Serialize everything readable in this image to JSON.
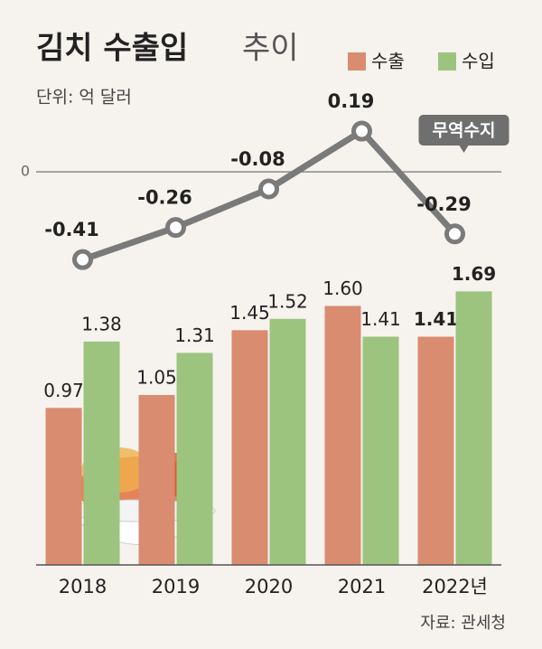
{
  "chart_data": {
    "type": "bar_line",
    "title": "김치 수출입",
    "title_light": "추이",
    "unit": "단위: 억 달러",
    "source": "자료: 관세청",
    "categories": [
      "2018",
      "2019",
      "2020",
      "2021",
      "2022년"
    ],
    "series": [
      {
        "name": "수출",
        "color": "#d98c70",
        "values": [
          0.97,
          1.05,
          1.45,
          1.6,
          1.41
        ],
        "value_labels": [
          "0.97",
          "1.05",
          "1.45",
          "1.60",
          "1.41"
        ]
      },
      {
        "name": "수입",
        "color": "#9cc47e",
        "values": [
          1.38,
          1.31,
          1.52,
          1.41,
          1.69
        ],
        "value_labels": [
          "1.38",
          "1.31",
          "1.52",
          "1.41",
          "1.69"
        ]
      },
      {
        "name": "무역수지",
        "color": "#7a7a7a",
        "axis": "y2",
        "values": [
          -0.41,
          -0.26,
          -0.08,
          0.19,
          -0.29
        ]
      }
    ],
    "ylim": [
      0,
      2.2
    ],
    "y2lim": [
      -0.5,
      0.3
    ],
    "y2ticks": [
      0
    ]
  }
}
